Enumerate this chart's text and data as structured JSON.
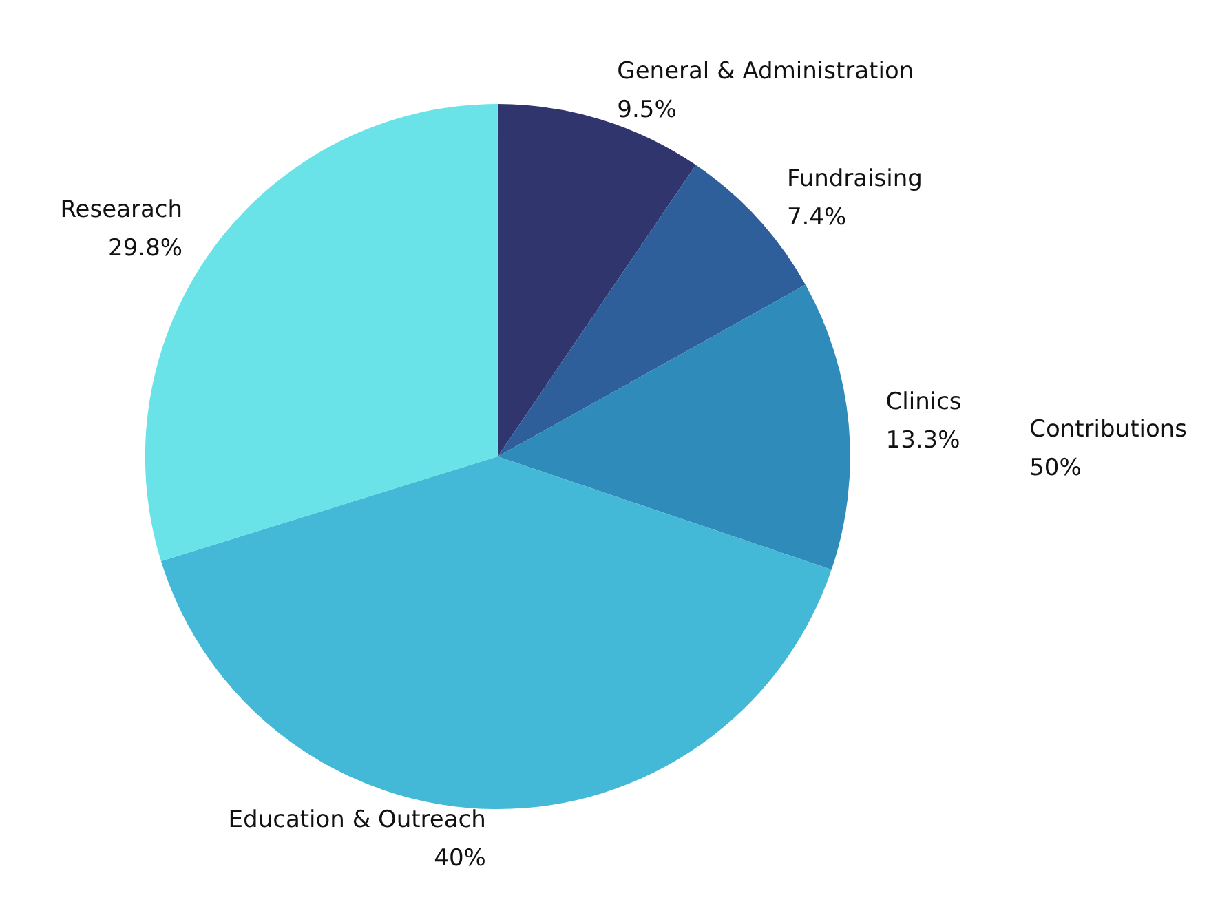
{
  "chart_data": {
    "type": "pie",
    "categories": [
      "General & Administration",
      "Fundraising",
      "Clinics",
      "Education & Outreach",
      "Researach"
    ],
    "values": [
      9.5,
      7.4,
      13.3,
      40,
      29.8
    ],
    "value_labels": [
      "9.5%",
      "7.4%",
      "13.3%",
      "40%",
      "29.8%"
    ],
    "colors": [
      "#31356e",
      "#2e5f9a",
      "#2e8bba",
      "#43b8d7",
      "#69e3e8"
    ],
    "annotations": [
      "Contributions\n50%"
    ],
    "legend": false
  }
}
